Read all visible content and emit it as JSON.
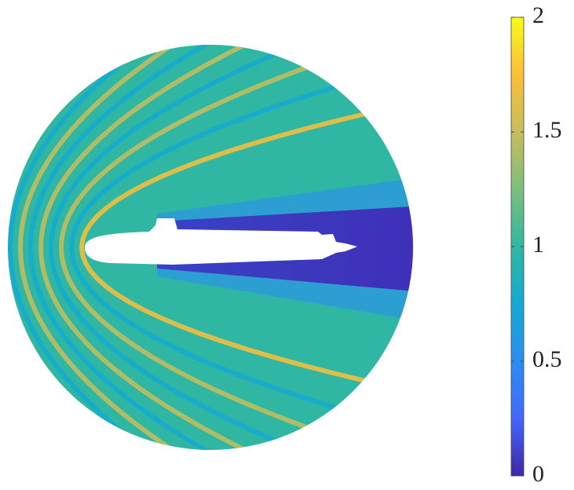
{
  "chart_data": {
    "type": "field",
    "clim": [
      0,
      2
    ],
    "cticks": [
      0,
      0.5,
      1,
      1.5,
      2
    ],
    "colormap": [
      "#3e26a8",
      "#4367fd",
      "#2c8ef1",
      "#14aad2",
      "#30b7a4",
      "#7cbf7b",
      "#c8bd5c",
      "#fbbf39",
      "#f9fb15"
    ]
  }
}
